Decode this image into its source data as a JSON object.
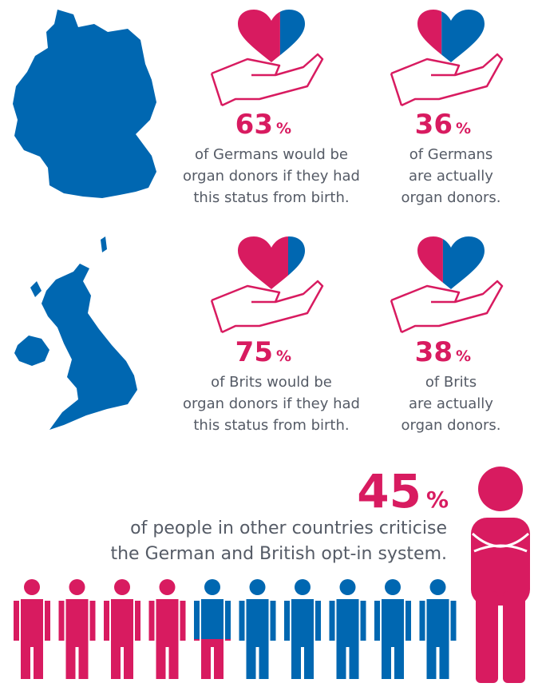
{
  "stats": [
    {
      "value": 63,
      "unit": "%",
      "text": [
        "of Germans would be",
        "organ donors if they had",
        "this status from birth."
      ]
    },
    {
      "value": 36,
      "unit": "%",
      "text": [
        "of Germans",
        "are actually",
        "organ donors."
      ]
    },
    {
      "value": 75,
      "unit": "%",
      "text": [
        "of Brits would be",
        "organ donors if they had",
        "this status from birth."
      ]
    },
    {
      "value": 38,
      "unit": "%",
      "text": [
        "of Brits",
        "are actually",
        "organ donors."
      ]
    }
  ],
  "summary": {
    "value": 45,
    "unit": "%",
    "text": [
      "of people in other countries criticise",
      "the German and British opt-in system."
    ]
  }
}
